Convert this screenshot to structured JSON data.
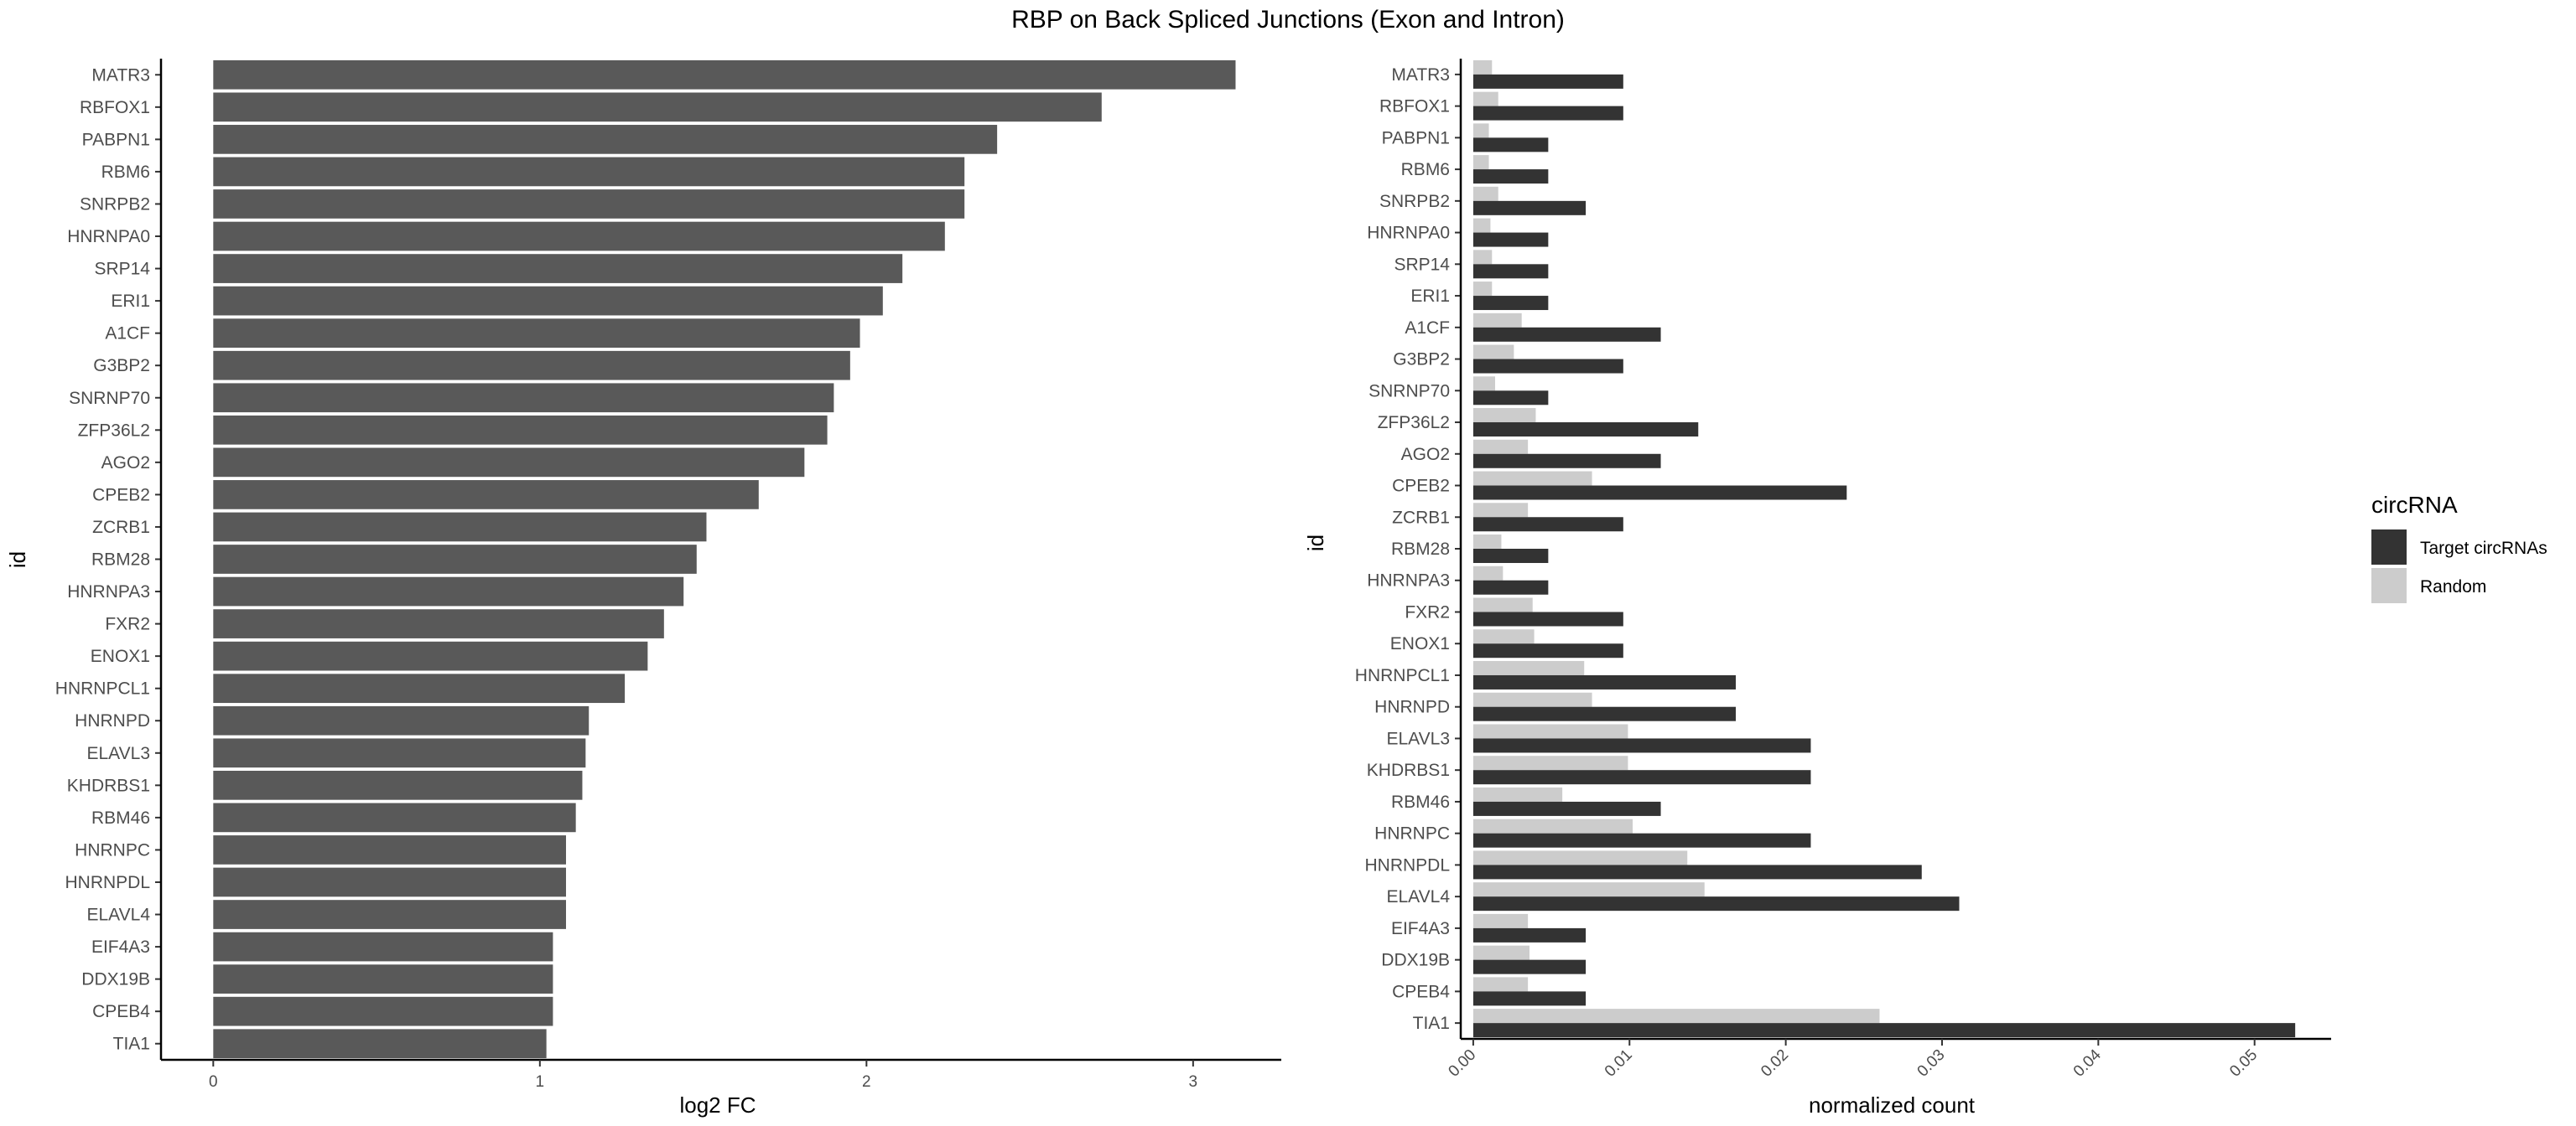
{
  "chart_data": [
    {
      "type": "bar",
      "orientation": "horizontal",
      "title": "RBP on Back Spliced Junctions (Exon and Intron)",
      "xlabel": "log2 FC",
      "ylabel": "id",
      "xlim": [
        -0.16,
        3.27
      ],
      "xticks": [
        0,
        1,
        2,
        3
      ],
      "grid": false,
      "bar_color": "#595959",
      "categories": [
        "MATR3",
        "RBFOX1",
        "PABPN1",
        "RBM6",
        "SNRPB2",
        "HNRNPA0",
        "SRP14",
        "ERI1",
        "A1CF",
        "G3BP2",
        "SNRNP70",
        "ZFP36L2",
        "AGO2",
        "CPEB2",
        "ZCRB1",
        "RBM28",
        "HNRNPA3",
        "FXR2",
        "ENOX1",
        "HNRNPCL1",
        "HNRNPD",
        "ELAVL3",
        "KHDRBS1",
        "RBM46",
        "HNRNPC",
        "HNRNPDL",
        "ELAVL4",
        "EIF4A3",
        "DDX19B",
        "CPEB4",
        "TIA1"
      ],
      "values": [
        3.13,
        2.72,
        2.4,
        2.3,
        2.3,
        2.24,
        2.11,
        2.05,
        1.98,
        1.95,
        1.9,
        1.88,
        1.81,
        1.67,
        1.51,
        1.48,
        1.44,
        1.38,
        1.33,
        1.26,
        1.15,
        1.14,
        1.13,
        1.11,
        1.08,
        1.08,
        1.08,
        1.04,
        1.04,
        1.04,
        1.02
      ]
    },
    {
      "type": "bar",
      "orientation": "horizontal",
      "xlabel": "normalized count",
      "ylabel": "id",
      "xlim": [
        -0.0008,
        0.0549
      ],
      "xticks": [
        0.0,
        0.01,
        0.02,
        0.03,
        0.04,
        0.05
      ],
      "xtick_labels": [
        "0.00",
        "0.01",
        "0.02",
        "0.03",
        "0.04",
        "0.05"
      ],
      "grid": false,
      "legend_title": "circRNA",
      "legend_position": "right",
      "categories": [
        "MATR3",
        "RBFOX1",
        "PABPN1",
        "RBM6",
        "SNRPB2",
        "HNRNPA0",
        "SRP14",
        "ERI1",
        "A1CF",
        "G3BP2",
        "SNRNP70",
        "ZFP36L2",
        "AGO2",
        "CPEB2",
        "ZCRB1",
        "RBM28",
        "HNRNPA3",
        "FXR2",
        "ENOX1",
        "HNRNPCL1",
        "HNRNPD",
        "ELAVL3",
        "KHDRBS1",
        "RBM46",
        "HNRNPC",
        "HNRNPDL",
        "ELAVL4",
        "EIF4A3",
        "DDX19B",
        "CPEB4",
        "TIA1"
      ],
      "series": [
        {
          "name": "Target circRNAs",
          "color": "#333333",
          "values": [
            0.0096,
            0.0096,
            0.0048,
            0.0048,
            0.0072,
            0.0048,
            0.0048,
            0.0048,
            0.012,
            0.0096,
            0.0048,
            0.0144,
            0.012,
            0.0239,
            0.0096,
            0.0048,
            0.0048,
            0.0096,
            0.0096,
            0.0168,
            0.0168,
            0.0216,
            0.0216,
            0.012,
            0.0216,
            0.0287,
            0.0311,
            0.0072,
            0.0072,
            0.0072,
            0.0526
          ]
        },
        {
          "name": "Random",
          "color": "#cccccc",
          "values": [
            0.0012,
            0.0016,
            0.001,
            0.001,
            0.0016,
            0.0011,
            0.0012,
            0.0012,
            0.0031,
            0.0026,
            0.0014,
            0.004,
            0.0035,
            0.0076,
            0.0035,
            0.0018,
            0.0019,
            0.0038,
            0.0039,
            0.0071,
            0.0076,
            0.0099,
            0.0099,
            0.0057,
            0.0102,
            0.0137,
            0.0148,
            0.0035,
            0.0036,
            0.0035,
            0.026
          ]
        }
      ]
    }
  ]
}
